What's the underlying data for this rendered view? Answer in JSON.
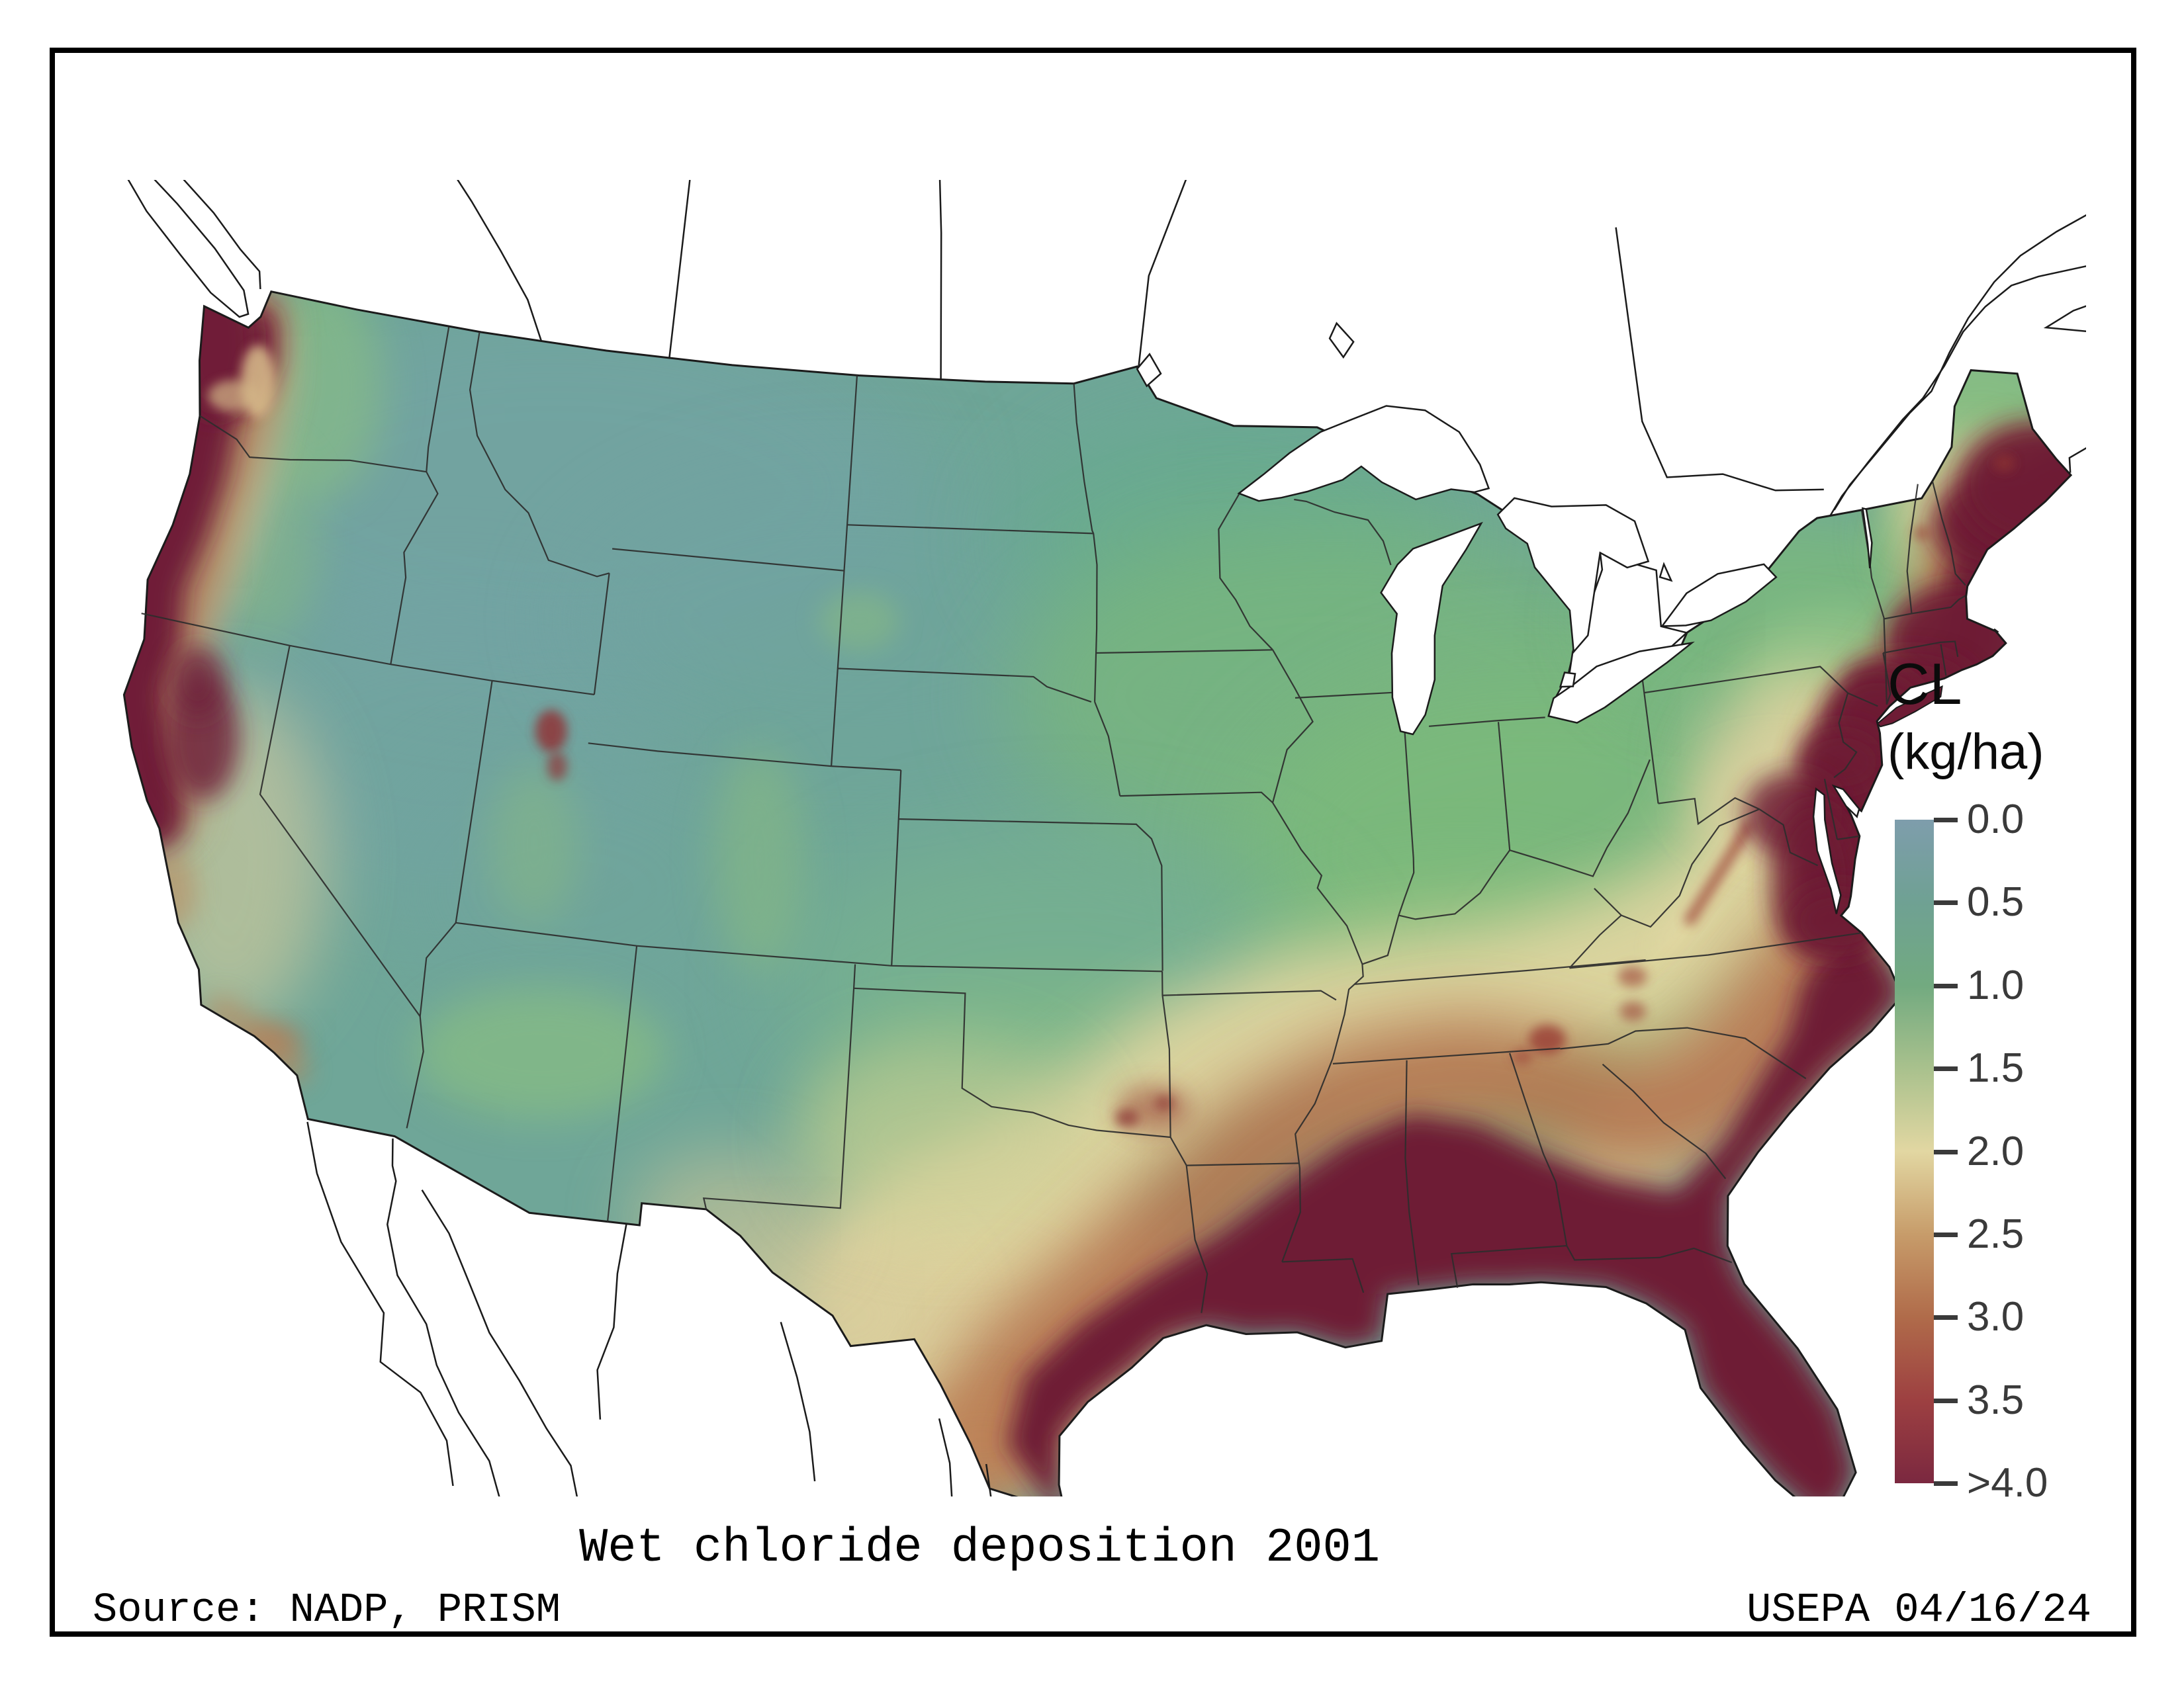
{
  "figure": {
    "title": "Wet chloride deposition 2001",
    "source": "Source: NADP, PRISM",
    "credit": "USEPA 04/16/24"
  },
  "legend": {
    "title": "CL",
    "unit": "(kg/ha)",
    "ticks": [
      "0.0",
      "0.5",
      "1.0",
      "1.5",
      "2.0",
      "2.5",
      "3.0",
      "3.5",
      ">4.0"
    ],
    "stops": [
      {
        "value": 0.0,
        "color": "#7E9DAC"
      },
      {
        "value": 0.5,
        "color": "#6FA193"
      },
      {
        "value": 1.0,
        "color": "#72AA80"
      },
      {
        "value": 1.5,
        "color": "#A9C18D"
      },
      {
        "value": 2.0,
        "color": "#E2D7A2"
      },
      {
        "value": 2.5,
        "color": "#C79C6A"
      },
      {
        "value": 3.0,
        "color": "#B06B4A"
      },
      {
        "value": 3.5,
        "color": "#9D4041"
      },
      {
        "value": 4.0,
        "color": "#7B2840"
      }
    ]
  },
  "chart_data": {
    "type": "heatmap",
    "title": "Wet chloride deposition 2001",
    "variable": "CL",
    "units": "kg/ha",
    "scale_range": [
      0,
      4
    ],
    "scale_note": "continuous color ramp; highest class labeled >4.0",
    "legend_position": "right",
    "region_shown": "Contiguous United States with Canada and Mexico outlines",
    "regions": [
      {
        "area": "Pacific coast strip (WA, OR, northern CA)",
        "value_kg_ha": ">4.0"
      },
      {
        "area": "Puget Sound / Olympic Peninsula (WA)",
        "value_kg_ha": ">4.0"
      },
      {
        "area": "Gulf Coast: south Texas through Louisiana, Mississippi, Alabama",
        "value_kg_ha": ">4.0"
      },
      {
        "area": "Entire Florida peninsula",
        "value_kg_ha": ">4.0"
      },
      {
        "area": "Atlantic coastal plain from Georgia to coastal Maine",
        "value_kg_ha": ">4.0"
      },
      {
        "area": "Inland Southeast belt (east TX, AR, northern MS/AL/GA)",
        "value_kg_ha": "2.5-4.0"
      },
      {
        "area": "Central Texas and Piedmont transition belt",
        "value_kg_ha": "1.5-2.5"
      },
      {
        "area": "Midwest, Ohio Valley, inland Northeast, interior Maine",
        "value_kg_ha": "0.5-1.5"
      },
      {
        "area": "Northern plains, Rockies, Great Basin, desert Southwest interior",
        "value_kg_ha": "0.0-0.5"
      },
      {
        "area": "Great Salt Lake shoreline spots (UT)",
        "value_kg_ha": "3.0-4.0"
      },
      {
        "area": "Sierra Nevada / Shasta foothill patches (CA)",
        "value_kg_ha": ">4.0"
      }
    ]
  }
}
